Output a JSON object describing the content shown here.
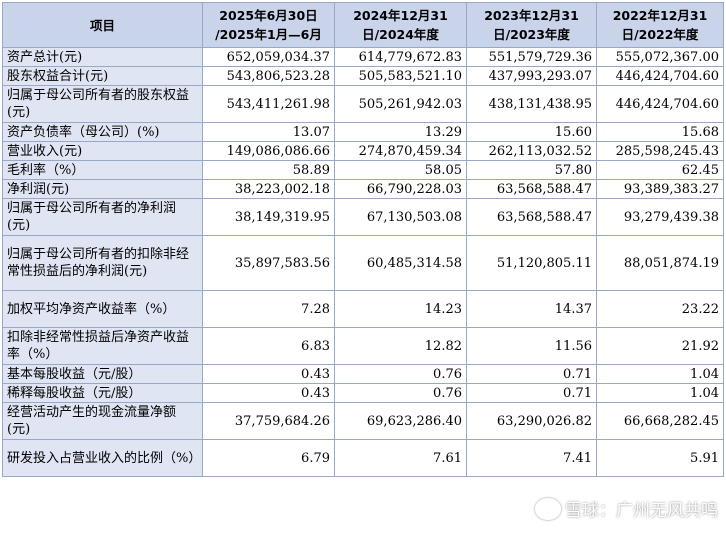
{
  "table": {
    "headers": [
      "项目",
      "2025年6月30日\n/2025年1月—6月",
      "2024年12月31\n日/2024年度",
      "2023年12月31\n日/2023年度",
      "2022年12月31\n日/2022年度"
    ],
    "rows": [
      {
        "label": "资产总计(元)",
        "values": [
          "652,059,034.37",
          "614,779,672.83",
          "551,579,729.36",
          "555,072,367.00"
        ]
      },
      {
        "label": "股东权益合计(元)",
        "values": [
          "543,806,523.28",
          "505,583,521.10",
          "437,993,293.07",
          "446,424,704.60"
        ]
      },
      {
        "label": "归属于母公司所有者的股东权益(元)",
        "values": [
          "543,411,261.98",
          "505,261,942.03",
          "438,131,438.95",
          "446,424,704.60"
        ]
      },
      {
        "label": "资产负债率（母公司）(%)",
        "values": [
          "13.07",
          "13.29",
          "15.60",
          "15.68"
        ]
      },
      {
        "label": "营业收入(元)",
        "values": [
          "149,086,086.66",
          "274,870,459.34",
          "262,113,032.52",
          "285,598,245.43"
        ]
      },
      {
        "label": "毛利率（%）",
        "values": [
          "58.89",
          "58.05",
          "57.80",
          "62.45"
        ]
      },
      {
        "label": "净利润(元)",
        "values": [
          "38,223,002.18",
          "66,790,228.03",
          "63,568,588.47",
          "93,389,383.27"
        ]
      },
      {
        "label": "归属于母公司所有者的净利润(元)",
        "values": [
          "38,149,319.95",
          "67,130,503.08",
          "63,568,588.47",
          "93,279,439.38"
        ]
      },
      {
        "label": "归属于母公司所有者的扣除非经常性损益后的净利润(元)",
        "values": [
          "35,897,583.56",
          "60,485,314.58",
          "51,120,805.11",
          "88,051,874.19"
        ]
      },
      {
        "label": "加权平均净资产收益率（%）",
        "values": [
          "7.28",
          "14.23",
          "14.37",
          "23.22"
        ]
      },
      {
        "label": "扣除非经常性损益后净资产收益率（%）",
        "values": [
          "6.83",
          "12.82",
          "11.56",
          "21.92"
        ]
      },
      {
        "label": "基本每股收益（元/股）",
        "values": [
          "0.43",
          "0.76",
          "0.71",
          "1.04"
        ]
      },
      {
        "label": "稀释每股收益（元/股）",
        "values": [
          "0.43",
          "0.76",
          "0.71",
          "1.04"
        ]
      },
      {
        "label": "经营活动产生的现金流量净额(元)",
        "values": [
          "37,759,684.26",
          "69,623,286.40",
          "63,290,026.82",
          "66,668,282.45"
        ]
      },
      {
        "label": "研发投入占营业收入的比例（%）",
        "values": [
          "6.79",
          "7.61",
          "7.41",
          "5.91"
        ]
      }
    ]
  },
  "watermark": {
    "text": "雪球：广州无风共鸣",
    "icon": "snowball-logo-icon"
  }
}
